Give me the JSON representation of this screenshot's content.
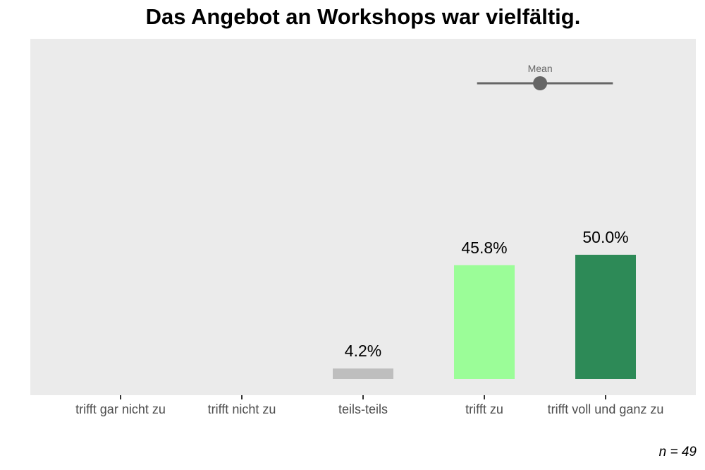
{
  "chart_data": {
    "type": "bar",
    "title": "Das Angebot an Workshops war vielfältig.",
    "categories": [
      "trifft gar nicht zu",
      "trifft nicht zu",
      "teils-teils",
      "trifft zu",
      "trifft voll und ganz zu"
    ],
    "values": [
      0,
      0,
      4.2,
      45.8,
      50.0
    ],
    "value_labels": [
      "",
      "",
      "4.2%",
      "45.8%",
      "50.0%"
    ],
    "colors": [
      "#bebebe",
      "#bebebe",
      "#bebebe",
      "#9bfd98",
      "#2d8a57"
    ],
    "ylim": [
      0,
      50
    ],
    "grid": false,
    "mean_indicator": {
      "label": "Mean",
      "mean": 4.46,
      "low": 3.94,
      "high": 5.06,
      "color": "#666666"
    },
    "footnote": "n = 49"
  }
}
